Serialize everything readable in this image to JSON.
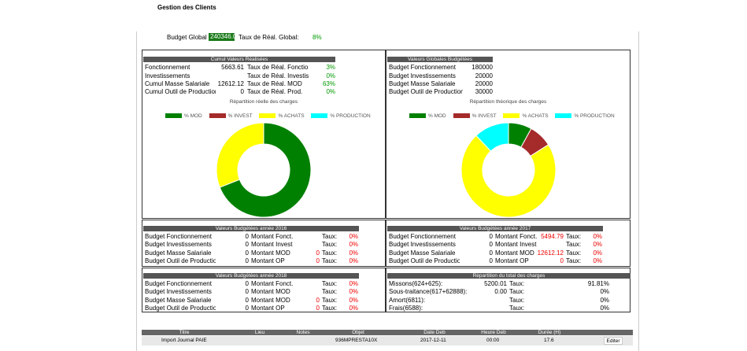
{
  "page": {
    "title": "Gestion des Clients"
  },
  "budget_global": {
    "label": "Budget Global :",
    "value": "240346.0",
    "taux_label": "Taux de Réal. Global:",
    "taux_value": "8%"
  },
  "cumul": {
    "header": "Cumul Valeurs Réalisées",
    "rows": [
      {
        "label": "Fonctionnement",
        "value": "5663.61",
        "taux_label": "Taux de Réal. Fonctionr",
        "pct": "3%"
      },
      {
        "label": "Investissements",
        "value": "",
        "taux_label": "Taux de Réal. Investisse",
        "pct": "0%"
      },
      {
        "label": "Cumul Masse Salariale",
        "value": "12612.12",
        "taux_label": "Taux de Réal. MOD",
        "pct": "63%"
      },
      {
        "label": "Cumul Outil de Production",
        "value": "0",
        "taux_label": "Taux de Réal. Prod.",
        "pct": "0%"
      }
    ]
  },
  "globales": {
    "header": "Valeurs Globales Budgétées",
    "rows": [
      {
        "label": "Budget Fonctionnement",
        "value": "180000"
      },
      {
        "label": "Budget Investissements",
        "value": "20000"
      },
      {
        "label": "Budget Masse Salariale",
        "value": "20000"
      },
      {
        "label": "Budget Outil de Production",
        "value": "30000"
      }
    ]
  },
  "legend": {
    "mod": "% MOD",
    "invest": "% INVEST",
    "achats": "% ACHATS",
    "production": "% PRODUCTION",
    "colors": {
      "mod": "#008000",
      "invest": "#a52a2a",
      "achats": "#ffff00",
      "production": "#00ffff"
    }
  },
  "chart_data": [
    {
      "type": "pie",
      "title": "Répartition réelle des charges",
      "categories": [
        "% MOD",
        "% INVEST",
        "% ACHATS",
        "% PRODUCTION"
      ],
      "values": [
        69,
        0,
        31,
        0
      ]
    },
    {
      "type": "pie",
      "title": "Répartition théorique des charges",
      "categories": [
        "% MOD",
        "% INVEST",
        "% ACHATS",
        "% PRODUCTION"
      ],
      "values": [
        8,
        8,
        72,
        12
      ]
    }
  ],
  "annee2016": {
    "header": "Valeurs Budgétées année 2016",
    "rows": [
      {
        "label": "Budget Fonctionnement",
        "value": "0",
        "montant_label": "Montant Fonct.",
        "montant": "",
        "taux_label": "Taux:",
        "pct": "0%"
      },
      {
        "label": "Budget Investissements",
        "value": "0",
        "montant_label": "Montant Invest",
        "montant": "",
        "taux_label": "Taux:",
        "pct": "0%"
      },
      {
        "label": "Budget Masse Salariale",
        "value": "0",
        "montant_label": "Montant MOD",
        "montant": "0",
        "taux_label": "Taux:",
        "pct": "0%"
      },
      {
        "label": "Budget Outil de Production",
        "value": "0",
        "montant_label": "Montant OP",
        "montant": "0",
        "taux_label": "Taux:",
        "pct": "0%"
      }
    ]
  },
  "annee2017": {
    "header": "Valeurs Budgétées année 2017",
    "rows": [
      {
        "label": "Budget Fonctionnement",
        "value": "0",
        "montant_label": "Montant Fonct.",
        "montant": "5494.79",
        "taux_label": "Taux:",
        "pct": "0%"
      },
      {
        "label": "Budget Investissements",
        "value": "0",
        "montant_label": "Montant Invest",
        "montant": "",
        "taux_label": "Taux:",
        "pct": "0%"
      },
      {
        "label": "Budget Masse Salariale",
        "value": "0",
        "montant_label": "Montant MOD",
        "montant": "12612.12",
        "taux_label": "Taux:",
        "pct": "0%"
      },
      {
        "label": "Budget Outil de Production",
        "value": "0",
        "montant_label": "Montant OP",
        "montant": "0",
        "taux_label": "Taux:",
        "pct": "0%"
      }
    ]
  },
  "annee2018": {
    "header": "Valeurs Budgétées année 2018",
    "rows": [
      {
        "label": "Budget Fonctionnement",
        "value": "0",
        "montant_label": "Montant Fonct.",
        "montant": "",
        "taux_label": "Taux:",
        "pct": "0%"
      },
      {
        "label": "Budget Investissements",
        "value": "0",
        "montant_label": "Montant MOD",
        "montant": "",
        "taux_label": "Taux:",
        "pct": "0%"
      },
      {
        "label": "Budget Masse Salariale",
        "value": "0",
        "montant_label": "Montant MOD",
        "montant": "0",
        "taux_label": "Taux:",
        "pct": "0%"
      },
      {
        "label": "Budget Outil de Production",
        "value": "0",
        "montant_label": "Montant OP",
        "montant": "0",
        "taux_label": "Taux:",
        "pct": "0%"
      }
    ]
  },
  "repartition_total": {
    "header": "Répartition du total des charges",
    "rows": [
      {
        "label": "Missons(624+625):",
        "value": "5200.01",
        "taux_label": "Taux:",
        "pct": "91.81%"
      },
      {
        "label": "Sous-traitance(617+62888):",
        "value": "0.00",
        "taux_label": "Taux:",
        "pct": "0%"
      },
      {
        "label": "Amort(6811):",
        "value": "",
        "taux_label": "Taux:",
        "pct": "0%"
      },
      {
        "label": "Frais(6588):",
        "value": "",
        "taux_label": "Taux:",
        "pct": "0%"
      }
    ]
  },
  "table": {
    "columns": [
      "Titre",
      "Lieu",
      "Notes",
      "Objet",
      "Date Deb",
      "Heure Deb",
      "Durée (H)"
    ],
    "rows": [
      {
        "titre": "Import Journal PAIE",
        "lieu": "",
        "notes": "",
        "objet": "936MPRESTA10X",
        "date": "2017-12-11",
        "heure": "00:00",
        "duree": "17.6",
        "action": "Editer"
      }
    ]
  }
}
